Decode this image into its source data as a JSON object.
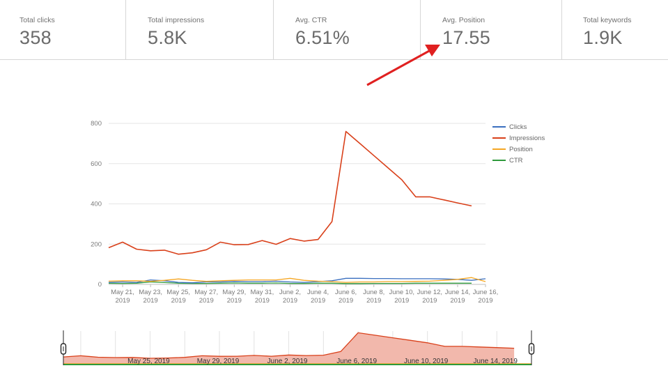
{
  "stats": [
    {
      "label": "Total clicks",
      "value": "358"
    },
    {
      "label": "Total impressions",
      "value": "5.8K"
    },
    {
      "label": "Avg. CTR",
      "value": "6.51%"
    },
    {
      "label": "Avg. Position",
      "value": "17.55"
    },
    {
      "label": "Total keywords",
      "value": "1.9K"
    }
  ],
  "colors": {
    "clicks": "#3a6fbf",
    "impressions": "#d9401a",
    "position": "#f5a623",
    "ctr": "#2e9a3c",
    "arrow": "#e02020",
    "navigator_fill": "#f2b8ac"
  },
  "chart_data": {
    "type": "line",
    "title": "",
    "xlabel": "",
    "ylabel": "",
    "ylim": [
      0,
      800
    ],
    "yticks": [
      0,
      200,
      400,
      600,
      800
    ],
    "grid": true,
    "legend_position": "right",
    "x": [
      "2019-05-20",
      "2019-05-21",
      "2019-05-22",
      "2019-05-23",
      "2019-05-24",
      "2019-05-25",
      "2019-05-26",
      "2019-05-27",
      "2019-05-28",
      "2019-05-29",
      "2019-05-30",
      "2019-05-31",
      "2019-06-01",
      "2019-06-02",
      "2019-06-03",
      "2019-06-04",
      "2019-06-05",
      "2019-06-06",
      "2019-06-07",
      "2019-06-08",
      "2019-06-09",
      "2019-06-10",
      "2019-06-11",
      "2019-06-12",
      "2019-06-13",
      "2019-06-14",
      "2019-06-15",
      "2019-06-16"
    ],
    "xtick_labels": [
      {
        "line1": "May 21,",
        "line2": "2019"
      },
      {
        "line1": "May 23,",
        "line2": "2019"
      },
      {
        "line1": "May 25,",
        "line2": "2019"
      },
      {
        "line1": "May 27,",
        "line2": "2019"
      },
      {
        "line1": "May 29,",
        "line2": "2019"
      },
      {
        "line1": "May 31,",
        "line2": "2019"
      },
      {
        "line1": "June 2,",
        "line2": "2019"
      },
      {
        "line1": "June 4,",
        "line2": "2019"
      },
      {
        "line1": "June 6,",
        "line2": "2019"
      },
      {
        "line1": "June 8,",
        "line2": "2019"
      },
      {
        "line1": "June 10,",
        "line2": "2019"
      },
      {
        "line1": "June 12,",
        "line2": "2019"
      },
      {
        "line1": "June 14,",
        "line2": "2019"
      },
      {
        "line1": "June 16,",
        "line2": "2019"
      }
    ],
    "series": [
      {
        "name": "Clicks",
        "values": [
          10,
          12,
          10,
          22,
          18,
          10,
          8,
          12,
          12,
          15,
          14,
          14,
          16,
          12,
          10,
          14,
          18,
          30,
          30,
          29,
          29,
          28,
          28,
          28,
          27,
          25,
          20,
          28
        ]
      },
      {
        "name": "Impressions",
        "values": [
          182,
          210,
          175,
          167,
          170,
          150,
          157,
          172,
          210,
          197,
          198,
          218,
          199,
          228,
          215,
          223,
          312,
          760,
          700,
          640,
          580,
          520,
          435,
          435,
          420,
          405,
          390,
          null
        ]
      },
      {
        "name": "Position",
        "values": [
          16,
          18,
          18,
          15,
          20,
          27,
          20,
          15,
          18,
          20,
          22,
          22,
          22,
          30,
          20,
          16,
          14,
          10,
          12,
          12,
          14,
          14,
          15,
          16,
          20,
          25,
          34,
          14
        ]
      },
      {
        "name": "CTR",
        "values": [
          6,
          5,
          6,
          12,
          9,
          6,
          5,
          5,
          6,
          7,
          6,
          6,
          7,
          5,
          5,
          6,
          6,
          4,
          4,
          5,
          5,
          5,
          6,
          6,
          6,
          6,
          6,
          null
        ]
      }
    ],
    "navigator_ticks": [
      "May 25, 2019",
      "May 29, 2019",
      "June 2, 2019",
      "June 6, 2019",
      "June 10, 2019",
      "June 14, 2019"
    ]
  }
}
